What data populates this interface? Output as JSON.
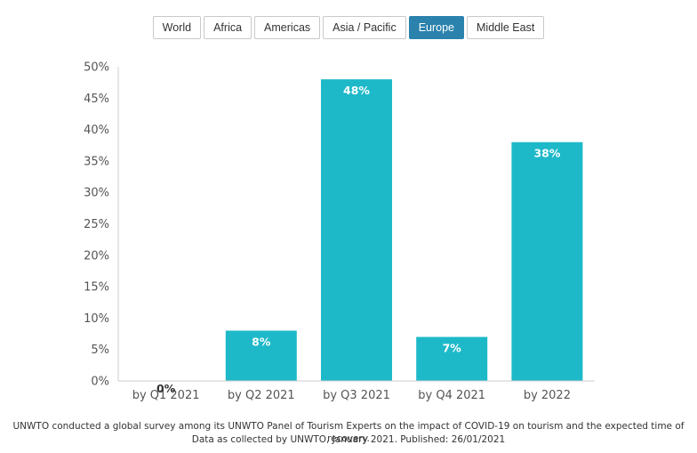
{
  "tabs": [
    {
      "label": "World",
      "active": false
    },
    {
      "label": "Africa",
      "active": false
    },
    {
      "label": "Americas",
      "active": false
    },
    {
      "label": "Asia / Pacific",
      "active": false
    },
    {
      "label": "Europe",
      "active": true
    },
    {
      "label": "Middle East",
      "active": false
    }
  ],
  "colors": {
    "bar": "#1db9c9",
    "active_tab": "#2b82ad",
    "axis": "#cccccc"
  },
  "chart_data": {
    "type": "bar",
    "categories": [
      "by Q1 2021",
      "by Q2 2021",
      "by Q3 2021",
      "by Q4 2021",
      "by 2022"
    ],
    "values": [
      0,
      8,
      48,
      7,
      38
    ],
    "data_labels": [
      "0%",
      "8%",
      "48%",
      "7%",
      "38%"
    ],
    "yticks": [
      "0%",
      "5%",
      "10%",
      "15%",
      "20%",
      "25%",
      "30%",
      "35%",
      "40%",
      "45%",
      "50%"
    ],
    "ylim": [
      0,
      50
    ],
    "title": "",
    "xlabel": "",
    "ylabel": "",
    "grid": false,
    "legend": "none"
  },
  "caption": {
    "line1": "UNWTO conducted a global survey among its UNWTO Panel of Tourism Experts on the impact of COVID-19 on tourism and the expected time of recovery.",
    "line2": "Data as collected by UNWTO, January 2021. Published: 26/01/2021"
  }
}
